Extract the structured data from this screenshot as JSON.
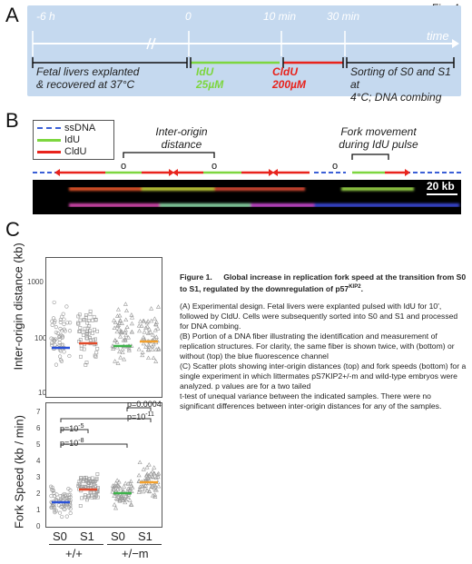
{
  "figure_label": "Fig. 4",
  "panel_a": {
    "letter": "A",
    "times": [
      "-6 h",
      "0",
      "10 min",
      "30 min"
    ],
    "axis_label": "time",
    "stages": [
      {
        "lines": [
          "Fetal livers explanted",
          "& recovered at 37°C"
        ]
      },
      {
        "lines": [
          "IdU",
          "25µM"
        ]
      },
      {
        "lines": [
          "CldU",
          "200µM"
        ]
      },
      {
        "lines": [
          "Sorting of S0 and S1 at",
          "4°C; DNA combing"
        ]
      }
    ],
    "colors": {
      "idu": "#7dd63f",
      "cldu": "#e8231c",
      "box": "#c5d9ef"
    }
  },
  "panel_b": {
    "letter": "B",
    "legend": [
      {
        "label": "ssDNA",
        "color": "#3b5fd6",
        "style": "dashed"
      },
      {
        "label": "IdU",
        "color": "#7dd63f",
        "style": "solid"
      },
      {
        "label": "CldU",
        "color": "#e8231c",
        "style": "solid"
      }
    ],
    "annotation_interorigin": [
      "Inter-origin",
      "distance"
    ],
    "annotation_fork": [
      "Fork movement",
      "during IdU pulse"
    ],
    "origin_marker": "o",
    "scale_bar": "20 kb"
  },
  "panel_c": {
    "letter": "C",
    "top_plot": {
      "ylabel": "Inter-origin distance (kb)",
      "yticks": [
        "1000",
        "100",
        "10"
      ]
    },
    "bottom_plot": {
      "ylabel": "Fork Speed (kb / min)",
      "yticks": [
        "7",
        "6",
        "5",
        "4",
        "3",
        "2",
        "1",
        "0"
      ],
      "pvalues": [
        {
          "html": "p=10",
          "sup": "-5"
        },
        {
          "html": "p=10",
          "sup": "-8"
        },
        {
          "html": "p=10",
          "sup": "-11"
        },
        {
          "html": "p=0.0004",
          "sup": ""
        }
      ]
    },
    "categories": [
      "S0",
      "S1",
      "S0",
      "S1"
    ],
    "genotypes": [
      "+/+",
      "+/−m"
    ],
    "colors": {
      "s0_ko": "#3db34a",
      "s1_ko": "#f2a02c",
      "s0_wt": "#2a52d8",
      "s1_wt": "#e24a2a"
    }
  },
  "caption": {
    "title": "Figure 1.",
    "title_text": "Global increase in replication fork speed at the transition from S0 to S1, regulated by the downregulation of p57",
    "title_sup": "KIP2",
    "paragraphs": [
      "(A)  Experimental design. Fetal livers were explanted pulsed with IdU for 10', followed by CldU. Cells were subsequently sorted into S0 and S1 and processed for DNA combing.",
      "(B)  Portion of a DNA fiber illustrating the identification and measurement of replication structures. For clarity, the same fiber is shown twice, with (bottom) or without (top) the blue fluorescence channel",
      "(C) Scatter plots showing inter-origin distances (top) and fork speeds (bottom) for a single experiment in which littermates pS7KIP2+/-m and wild-type embryos were analyzed. p values are for a two tailed",
      "t-test of unequal variance between the indicated samples. There were no significant differences between inter-origin distances for any of the samples."
    ]
  }
}
